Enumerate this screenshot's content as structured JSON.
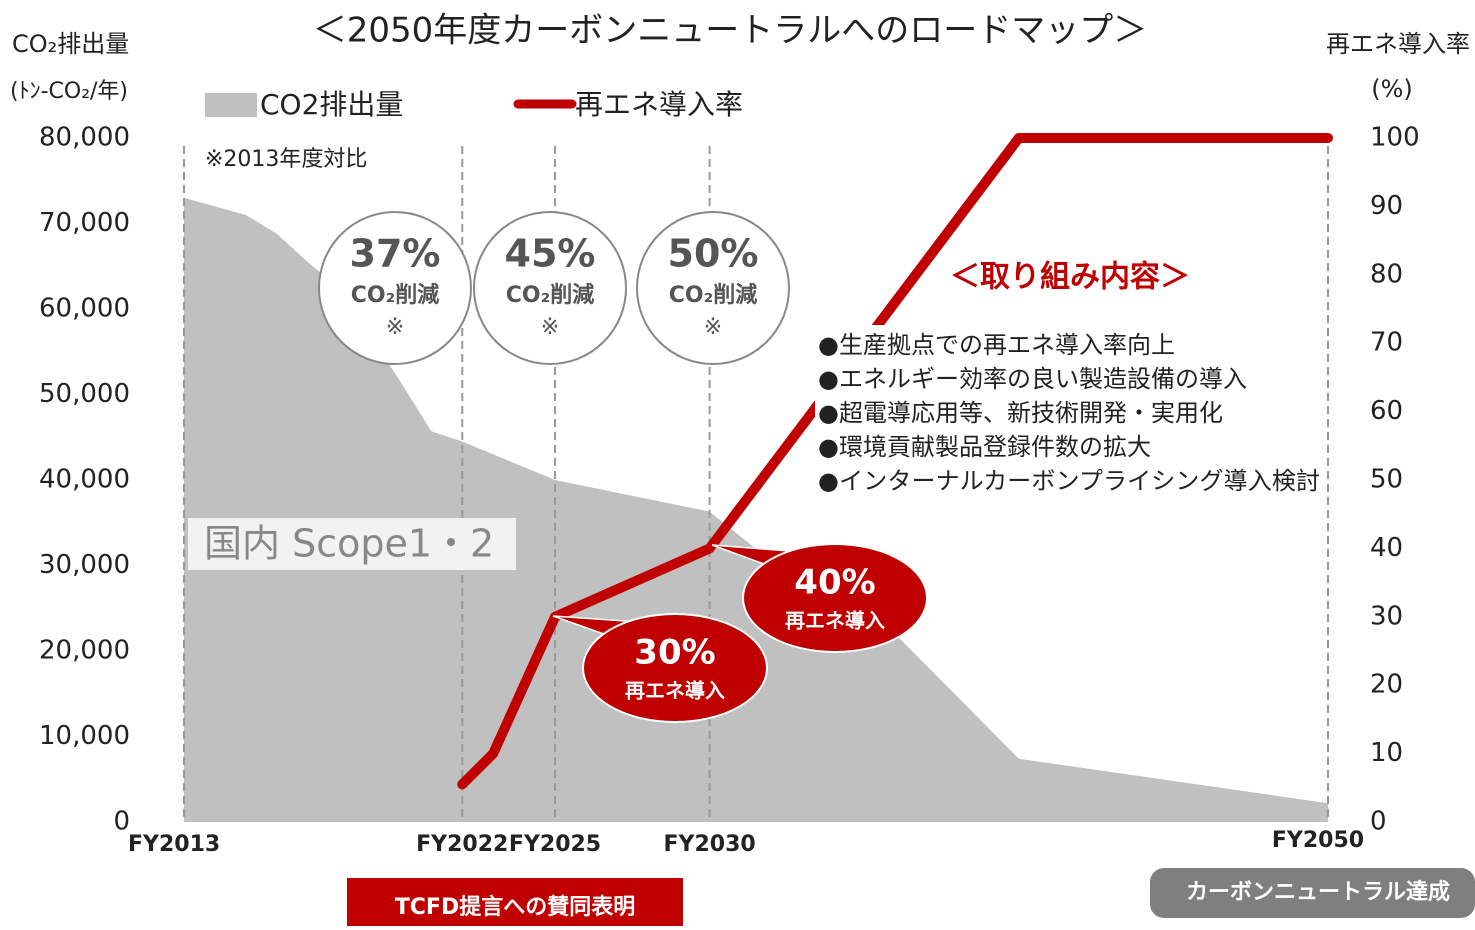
{
  "chart_data": {
    "type": "combo",
    "title": "＜2050年度カーボンニュートラルへのロードマップ＞",
    "y_label": "CO₂排出量",
    "y_unit": "(ﾄﾝ-CO₂/年)",
    "y2_label": "再エネ導入率",
    "y2_unit": "(%)",
    "xlim": [
      2013,
      2050
    ],
    "xticks": [
      {
        "value": 2013,
        "label": "FY2013"
      },
      {
        "value": 2022,
        "label": "FY2022"
      },
      {
        "value": 2025,
        "label": "FY2025"
      },
      {
        "value": 2030,
        "label": "FY2030"
      },
      {
        "value": 2050,
        "label": "FY2050"
      }
    ],
    "ylim": [
      0,
      80000
    ],
    "yticks": [
      0,
      {
        "value": 10000,
        "label": "10,000"
      },
      {
        "value": 20000,
        "label": "20,000"
      },
      {
        "value": 30000,
        "label": "30,000"
      },
      {
        "value": 40000,
        "label": "40,000"
      },
      {
        "value": 50000,
        "label": "50,000"
      },
      {
        "value": 60000,
        "label": "60,000"
      },
      {
        "value": 70000,
        "label": "70,000"
      },
      {
        "value": 80000,
        "label": "80,000"
      }
    ],
    "y2lim": [
      0,
      100
    ],
    "y2ticks": [
      0,
      10,
      20,
      30,
      40,
      50,
      60,
      70,
      80,
      90,
      100
    ],
    "series": [
      {
        "name": "CO2排出量",
        "type": "area",
        "color": "#c0c0c0",
        "x": [
          2013,
          2014,
          2015,
          2016,
          2017,
          2018,
          2019,
          2020,
          2021,
          2022,
          2025,
          2030,
          2032,
          2036,
          2040,
          2050
        ],
        "values": [
          73000,
          72000,
          71000,
          68800,
          65500,
          62500,
          57000,
          51500,
          45700,
          44500,
          40000,
          36300,
          30500,
          22000,
          7400,
          2200
        ]
      },
      {
        "name": "再エネ導入率",
        "type": "line",
        "axis": "y2",
        "color": "#c00000",
        "x": [
          2022,
          2023,
          2025,
          2030,
          2040,
          2050
        ],
        "values": [
          5.5,
          10,
          30,
          40,
          100,
          100
        ]
      }
    ],
    "annotations": {
      "base_note": "※2013年度対比",
      "scope": "国内 Scope1・2",
      "reductions": [
        {
          "pct": "37%",
          "text": "CO₂削減",
          "mark": "※"
        },
        {
          "pct": "45%",
          "text": "CO₂削減",
          "mark": "※"
        },
        {
          "pct": "50%",
          "text": "CO₂削減",
          "mark": "※"
        }
      ],
      "callouts": [
        {
          "pct": "30%",
          "text": "再エネ導入"
        },
        {
          "pct": "40%",
          "text": "再エネ導入"
        }
      ],
      "box_title": "＜取り組み内容＞",
      "box_items": [
        "●生産拠点での再エネ導入率向上",
        "●エネルギー効率の良い製造設備の導入",
        "●超電導応用等、新技術開発・実用化",
        "●環境貢献製品登録件数の拡大",
        "●インターナルカーボンプライシング導入検討"
      ],
      "tcfd": "TCFD提言への賛同表明",
      "neutral": "カーボンニュートラル達成"
    }
  }
}
